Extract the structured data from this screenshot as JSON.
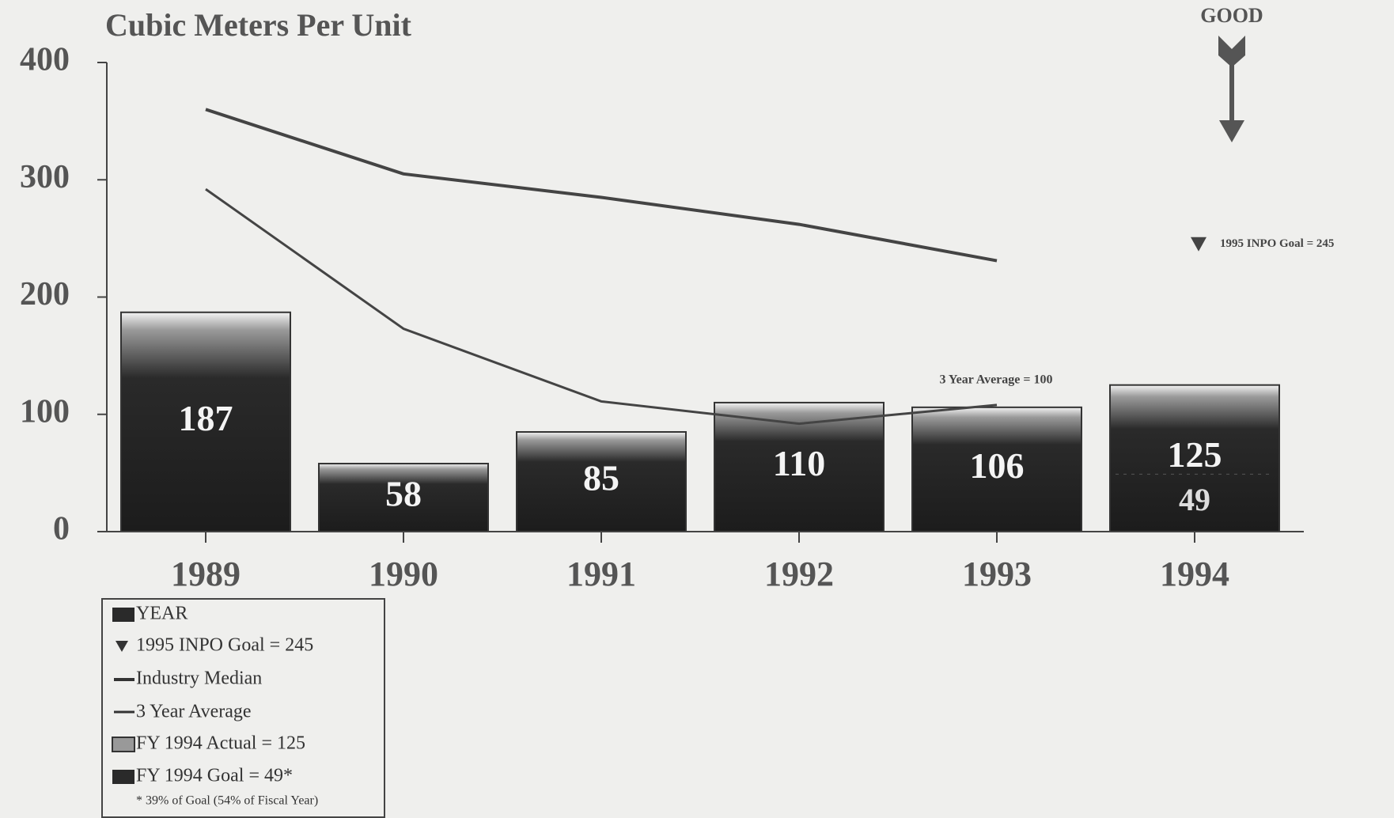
{
  "chart_data": {
    "type": "bar",
    "title": "Cubic Meters Per Unit",
    "categories": [
      "1989",
      "1990",
      "1991",
      "1992",
      "1993",
      "1994"
    ],
    "series": [
      {
        "name": "YEAR",
        "color": "#1e1e1e",
        "values": [
          187,
          58,
          85,
          110,
          106,
          125
        ]
      },
      {
        "name": "Industry Median",
        "color": "#444444",
        "values": [
          360,
          305,
          285,
          262,
          231,
          null
        ]
      },
      {
        "name": "3 Year Average",
        "color": "#444444",
        "values": [
          292,
          173,
          111,
          92,
          108,
          null
        ]
      }
    ],
    "ylim": [
      0,
      400
    ],
    "yticks": [
      0,
      100,
      200,
      300,
      400
    ],
    "annotation": "3 Year Average = 100",
    "good_label": "GOOD",
    "inpo_goal": {
      "label": "1995 INPO Goal = 245",
      "value": 245
    },
    "fy_goal_value": 49,
    "legend_items": {
      "actual": "FY 1994 Actual  = 125",
      "goal": "FY 1994 Goal = 49*",
      "footnote": "* 39% of Goal (54% of Fiscal Year)"
    }
  }
}
